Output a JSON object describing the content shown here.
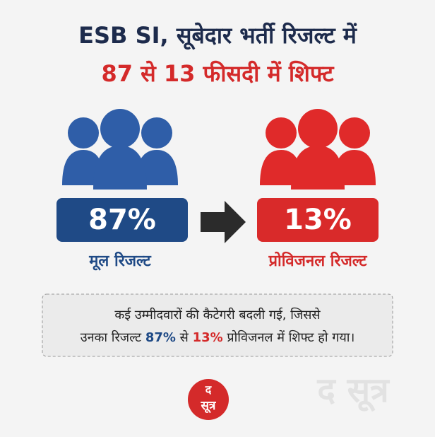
{
  "header": {
    "title_line1": "ESB SI, सूबेदार भर्ती रिजल्ट में",
    "title_line2": "87 से 13 फीसदी में शिफ्ट"
  },
  "left": {
    "value": "87%",
    "label": "मूल रिजल्ट"
  },
  "right": {
    "value": "13%",
    "label": "प्रोविजनल रिजल्ट"
  },
  "note": {
    "line1": "कई उम्मीदवारों की कैटेगरी बदली गई, जिससे",
    "line2_parts": [
      "उनका रिजल्ट",
      "87%",
      "से",
      "13%",
      "प्रोविजनल में शिफ्ट हो गया।"
    ]
  },
  "logo": {
    "top": "द",
    "bottom": "सूत्र"
  },
  "watermark": "द सूत्र"
}
